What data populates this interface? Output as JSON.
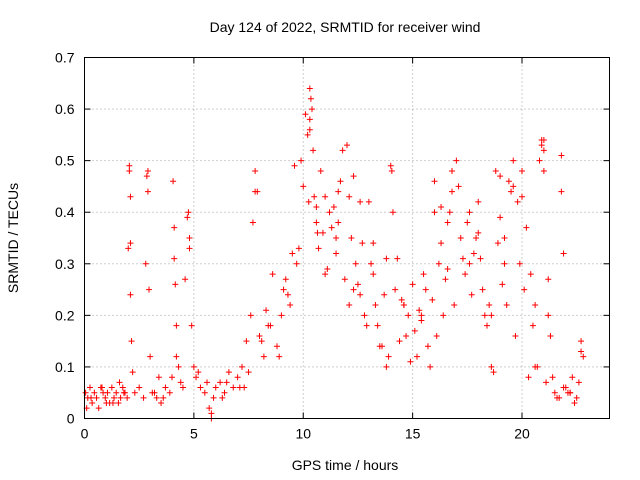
{
  "chart_data": {
    "type": "scatter",
    "title": "Day 124 of 2022, SRMTID for receiver wind",
    "xlabel": "GPS time / hours",
    "ylabel": "SRMTID / TECUs",
    "xlim": [
      0,
      24
    ],
    "ylim": [
      0,
      0.7
    ],
    "xticks": [
      "0",
      "5",
      "10",
      "15",
      "20"
    ],
    "yticks": [
      "0",
      "0.1",
      "0.2",
      "0.3",
      "0.4",
      "0.5",
      "0.6",
      "0.7"
    ],
    "grid": true,
    "marker": "plus",
    "color": "#ff0000",
    "series": [
      {
        "name": "SRMTID",
        "x": [
          0.05,
          0.15,
          0.25,
          0.35,
          0.45,
          0.55,
          0.65,
          0.75,
          0.85,
          0.95,
          1.05,
          1.15,
          1.25,
          1.35,
          1.45,
          1.55,
          1.65,
          1.75,
          1.85,
          1.95,
          2.0,
          2.05,
          2.05,
          2.1,
          2.1,
          2.15,
          2.2,
          2.3,
          2.5,
          2.7,
          2.8,
          2.85,
          2.9,
          2.95,
          3.0,
          3.1,
          3.3,
          3.5,
          3.7,
          3.9,
          4.0,
          4.05,
          4.1,
          4.15,
          4.2,
          4.3,
          4.5,
          4.6,
          4.7,
          4.75,
          4.8,
          4.9,
          5.0,
          5.1,
          5.3,
          5.5,
          5.6,
          5.7,
          5.8,
          6.0,
          6.2,
          6.4,
          6.6,
          6.8,
          7.0,
          7.2,
          7.4,
          7.6,
          7.7,
          7.8,
          7.9,
          8.0,
          8.2,
          8.4,
          8.6,
          8.8,
          9.0,
          9.2,
          9.4,
          9.5,
          9.6,
          9.8,
          10.0,
          10.1,
          10.2,
          10.3,
          10.35,
          10.4,
          10.5,
          10.6,
          10.7,
          10.8,
          10.9,
          11.0,
          11.2,
          11.4,
          11.6,
          11.8,
          12.0,
          12.2,
          12.3,
          12.4,
          12.6,
          12.8,
          13.0,
          13.2,
          13.4,
          13.6,
          13.8,
          14.0,
          14.1,
          14.2,
          14.4,
          14.6,
          14.8,
          15.0,
          15.2,
          15.4,
          15.6,
          15.8,
          16.0,
          16.2,
          16.4,
          16.6,
          16.8,
          17.0,
          17.1,
          17.2,
          17.4,
          17.6,
          17.8,
          18.0,
          18.2,
          18.4,
          18.6,
          18.8,
          19.0,
          19.2,
          19.4,
          19.6,
          19.8,
          20.0,
          20.2,
          20.4,
          20.6,
          20.8,
          20.9,
          21.0,
          21.2,
          21.4,
          21.6,
          21.8,
          22.0,
          22.2,
          22.4,
          22.6,
          22.8,
          0.3,
          0.8,
          1.3,
          1.8,
          3.2,
          3.6,
          4.4,
          5.2,
          5.9,
          6.5,
          7.1,
          7.5,
          8.1,
          8.5,
          8.9,
          9.3,
          9.7,
          10.25,
          10.45,
          10.65,
          11.1,
          11.3,
          11.5,
          11.7,
          11.9,
          12.1,
          12.5,
          12.7,
          12.9,
          13.1,
          13.3,
          13.5,
          13.7,
          13.9,
          14.3,
          14.5,
          14.7,
          14.9,
          15.1,
          15.3,
          15.5,
          15.7,
          15.9,
          16.1,
          16.3,
          16.5,
          16.7,
          16.9,
          17.3,
          17.5,
          17.7,
          17.9,
          18.1,
          18.3,
          18.5,
          18.7,
          18.9,
          19.1,
          19.3,
          19.5,
          19.7,
          19.9,
          20.1,
          20.3,
          20.5,
          20.7,
          21.1,
          21.3,
          21.5,
          21.7,
          21.9,
          22.1,
          22.3,
          22.5,
          22.7,
          2.1,
          2.9,
          4.1,
          4.8,
          7.8,
          9.9,
          10.3,
          10.3,
          10.6,
          11.0,
          11.6,
          12.1,
          12.3,
          13.8,
          14.05,
          16.0,
          16.3,
          16.8,
          18.0,
          19.0,
          19.6,
          20.0,
          20.9,
          21.0,
          21.0,
          21.2,
          21.8,
          21.9,
          22.7,
          5.8,
          0.1,
          1.0,
          1.6,
          3.4,
          4.2,
          6.3,
          7.3,
          8.3,
          9.1,
          11.5,
          12.6,
          13.2,
          14.6,
          15.4,
          16.6,
          17.6,
          18.6,
          19.2,
          20.6,
          22.2
        ],
        "y": [
          0.05,
          0.04,
          0.06,
          0.03,
          0.05,
          0.04,
          0.02,
          0.06,
          0.05,
          0.04,
          0.05,
          0.03,
          0.06,
          0.04,
          0.05,
          0.03,
          0.04,
          0.06,
          0.05,
          0.04,
          0.33,
          0.48,
          0.49,
          0.24,
          0.43,
          0.15,
          0.09,
          0.05,
          0.06,
          0.04,
          0.3,
          0.47,
          0.44,
          0.25,
          0.12,
          0.05,
          0.04,
          0.03,
          0.06,
          0.05,
          0.08,
          0.46,
          0.37,
          0.26,
          0.18,
          0.1,
          0.06,
          0.27,
          0.39,
          0.4,
          0.33,
          0.18,
          0.1,
          0.08,
          0.06,
          0.05,
          0.07,
          0.02,
          0.0,
          0.06,
          0.07,
          0.05,
          0.09,
          0.06,
          0.08,
          0.1,
          0.15,
          0.2,
          0.38,
          0.48,
          0.44,
          0.16,
          0.12,
          0.18,
          0.28,
          0.14,
          0.2,
          0.27,
          0.22,
          0.32,
          0.49,
          0.33,
          0.45,
          0.59,
          0.55,
          0.64,
          0.62,
          0.6,
          0.43,
          0.38,
          0.33,
          0.48,
          0.36,
          0.28,
          0.4,
          0.41,
          0.44,
          0.52,
          0.53,
          0.35,
          0.25,
          0.3,
          0.24,
          0.2,
          0.42,
          0.28,
          0.18,
          0.14,
          0.1,
          0.49,
          0.4,
          0.25,
          0.15,
          0.22,
          0.2,
          0.26,
          0.12,
          0.2,
          0.25,
          0.1,
          0.46,
          0.3,
          0.2,
          0.38,
          0.48,
          0.5,
          0.45,
          0.35,
          0.28,
          0.4,
          0.32,
          0.42,
          0.25,
          0.18,
          0.1,
          0.48,
          0.39,
          0.3,
          0.46,
          0.5,
          0.42,
          0.43,
          0.37,
          0.28,
          0.1,
          0.5,
          0.53,
          0.54,
          0.2,
          0.08,
          0.04,
          0.51,
          0.06,
          0.05,
          0.03,
          0.07,
          0.12,
          0.04,
          0.06,
          0.03,
          0.05,
          0.05,
          0.04,
          0.07,
          0.09,
          0.04,
          0.07,
          0.06,
          0.09,
          0.15,
          0.18,
          0.12,
          0.24,
          0.3,
          0.42,
          0.52,
          0.36,
          0.29,
          0.37,
          0.32,
          0.46,
          0.27,
          0.22,
          0.26,
          0.34,
          0.18,
          0.3,
          0.22,
          0.14,
          0.24,
          0.12,
          0.31,
          0.23,
          0.16,
          0.11,
          0.17,
          0.21,
          0.28,
          0.14,
          0.23,
          0.16,
          0.34,
          0.27,
          0.4,
          0.22,
          0.31,
          0.38,
          0.24,
          0.35,
          0.31,
          0.2,
          0.22,
          0.09,
          0.34,
          0.26,
          0.22,
          0.44,
          0.16,
          0.3,
          0.25,
          0.08,
          0.18,
          0.1,
          0.07,
          0.16,
          0.05,
          0.04,
          0.06,
          0.05,
          0.08,
          0.04,
          0.13,
          0.34,
          0.48,
          0.31,
          0.35,
          0.44,
          0.5,
          0.58,
          0.56,
          0.41,
          0.43,
          0.38,
          0.43,
          0.47,
          0.31,
          0.48,
          0.4,
          0.41,
          0.44,
          0.36,
          0.47,
          0.45,
          0.48,
          0.54,
          0.52,
          0.48,
          0.27,
          0.44,
          0.32,
          0.15,
          0.01,
          0.02,
          0.03,
          0.07,
          0.08,
          0.12,
          0.04,
          0.06,
          0.21,
          0.25,
          0.35,
          0.42,
          0.34,
          0.22,
          0.19,
          0.29,
          0.3,
          0.2,
          0.35,
          0.22,
          0.05
        ]
      }
    ]
  }
}
